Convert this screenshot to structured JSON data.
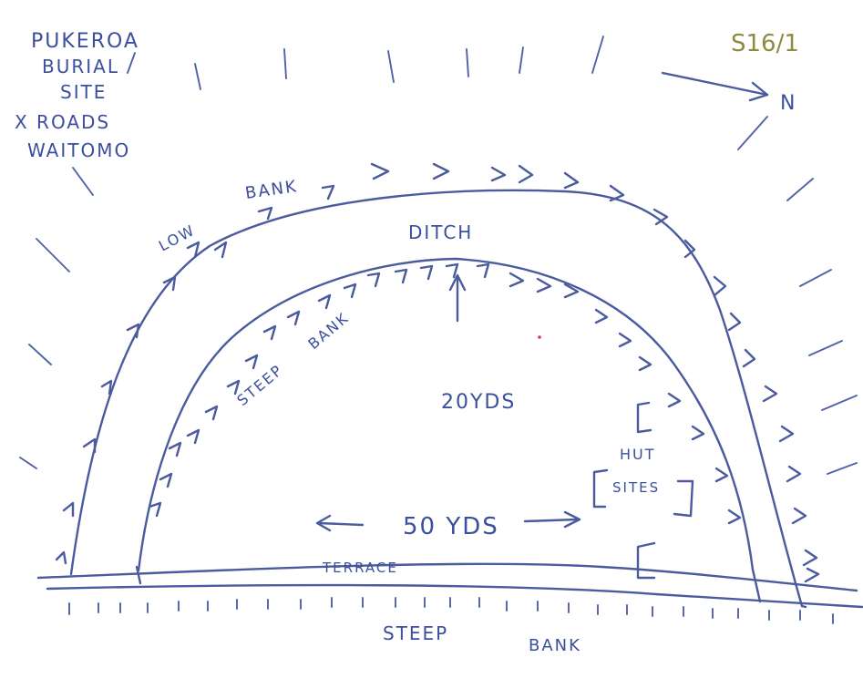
{
  "title_lines": [
    "PUKEROA",
    "BURIAL",
    "SITE",
    "X ROADS",
    "WAITOMO"
  ],
  "site_ref": "S16/1",
  "north_label": "N",
  "labels": {
    "low": "LOW",
    "bank_upper": "BANK",
    "ditch": "DITCH",
    "steep": "STEEP",
    "bank_inner": "BANK",
    "depth": "20YDS",
    "hut": "HUT",
    "sites": "SITES",
    "width": "50 YDS",
    "terrace": "TERRACE",
    "steep_bottom": "STEEP",
    "bank_bottom": "BANK"
  },
  "colors": {
    "ink": "#4a5b9e",
    "ref_ink": "#8f8a3e",
    "paper": "#ffffff"
  }
}
